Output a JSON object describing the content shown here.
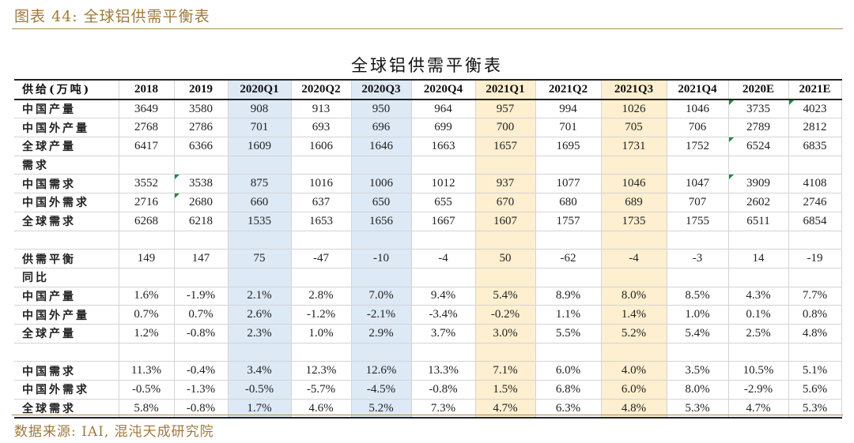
{
  "caption": "图表 44:  全球铝供需平衡表",
  "title": "全球铝供需平衡表",
  "source": "数据来源: IAI, 混沌天成研究院",
  "columns": [
    "供给(万吨)",
    "2018",
    "2019",
    "2020Q1",
    "2020Q2",
    "2020Q3",
    "2020Q4",
    "2021Q1",
    "2021Q2",
    "2021Q3",
    "2021Q4",
    "2020E",
    "2021E"
  ],
  "rows": [
    [
      "中国产量",
      "3649",
      "3580",
      "908",
      "913",
      "950",
      "964",
      "957",
      "994",
      "1026",
      "1046",
      "3735",
      "4023"
    ],
    [
      "中国外产量",
      "2768",
      "2786",
      "701",
      "693",
      "696",
      "699",
      "700",
      "701",
      "705",
      "706",
      "2789",
      "2812"
    ],
    [
      "全球产量",
      "6417",
      "6366",
      "1609",
      "1606",
      "1646",
      "1663",
      "1657",
      "1695",
      "1731",
      "1752",
      "6524",
      "6835"
    ],
    [
      " 需求",
      "",
      "",
      "",
      "",
      "",
      "",
      "",
      "",
      "",
      "",
      "",
      ""
    ],
    [
      "中国需求",
      "3552",
      "3538",
      "875",
      "1016",
      "1006",
      "1012",
      "937",
      "1077",
      "1046",
      "1047",
      "3909",
      "4108"
    ],
    [
      "中国外需求",
      "2716",
      "2680",
      "660",
      "637",
      "650",
      "655",
      "670",
      "680",
      "689",
      "707",
      "2602",
      "2746"
    ],
    [
      "全球需求",
      "6268",
      "6218",
      "1535",
      "1653",
      "1656",
      "1667",
      "1607",
      "1757",
      "1735",
      "1755",
      "6511",
      "6854"
    ],
    [
      "",
      "",
      "",
      "",
      "",
      "",
      "",
      "",
      "",
      "",
      "",
      "",
      ""
    ],
    [
      "供需平衡",
      "149",
      "147",
      "75",
      "-47",
      "-10",
      "-4",
      "50",
      "-62",
      "-4",
      "-3",
      "14",
      "-19"
    ],
    [
      "同比",
      "",
      "",
      "",
      "",
      "",
      "",
      "",
      "",
      "",
      "",
      "",
      ""
    ],
    [
      "中国产量",
      "1.6%",
      "-1.9%",
      "2.1%",
      "2.8%",
      "7.0%",
      "9.4%",
      "5.4%",
      "8.9%",
      "8.0%",
      "8.5%",
      "4.3%",
      "7.7%"
    ],
    [
      "中国外产量",
      "0.7%",
      "0.7%",
      "2.6%",
      "-1.2%",
      "-2.1%",
      "-3.4%",
      "-0.2%",
      "1.1%",
      "1.4%",
      "1.0%",
      "0.1%",
      "0.8%"
    ],
    [
      "全球产量",
      "1.2%",
      "-0.8%",
      "2.3%",
      "1.0%",
      "2.9%",
      "3.7%",
      "3.0%",
      "5.5%",
      "5.2%",
      "5.4%",
      "2.5%",
      "4.8%"
    ],
    [
      "",
      "",
      "",
      "",
      "",
      "",
      "",
      "",
      "",
      "",
      "",
      "",
      ""
    ],
    [
      "中国需求",
      "11.3%",
      "-0.4%",
      "3.4%",
      "12.3%",
      "12.6%",
      "13.3%",
      "7.1%",
      "6.0%",
      "4.0%",
      "3.5%",
      "10.5%",
      "5.1%"
    ],
    [
      "中国外需求",
      "-0.5%",
      "-1.3%",
      "-0.5%",
      "-5.7%",
      "-4.5%",
      "-0.8%",
      "1.5%",
      "6.8%",
      "6.0%",
      "8.0%",
      "-2.9%",
      "5.6%"
    ],
    [
      "全球需求",
      "5.8%",
      "-0.8%",
      "1.7%",
      "4.6%",
      "5.2%",
      "7.3%",
      "4.7%",
      "6.3%",
      "4.8%",
      "5.3%",
      "4.7%",
      "5.3%"
    ]
  ],
  "highlight_colors": {
    "blue": "#dde9f5",
    "yellow": "#fdefcf",
    "rule": "#b08d57",
    "caption": "#a07a3c"
  }
}
